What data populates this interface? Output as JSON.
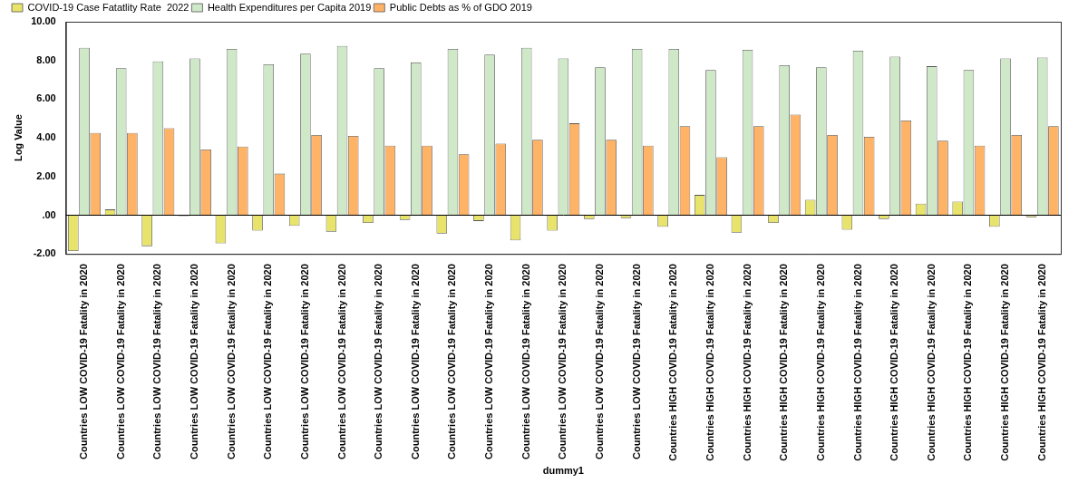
{
  "chart_data": {
    "type": "bar",
    "x_label": "dummy1",
    "y_label": "Log Value",
    "categories": [
      "Countries LOW COVID-19 Fatality in 2020",
      "Countries LOW COVID-19 Fatality in 2020",
      "Countries LOW COVID-19 Fatality in 2020",
      "Countries LOW COVID-19 Fatality in 2020",
      "Countries LOW COVID-19 Fatality in 2020",
      "Countries LOW COVID-19 Fatality in 2020",
      "Countries LOW COVID-19 Fatality in 2020",
      "Countries LOW COVID-19 Fatality in 2020",
      "Countries LOW COVID-19 Fatality in 2020",
      "Countries LOW COVID-19 Fatality in 2020",
      "Countries LOW COVID-19 Fatality in 2020",
      "Countries LOW COVID-19 Fatality in 2020",
      "Countries LOW COVID-19 Fatality in 2020",
      "Countries LOW COVID-19 Fatality in 2020",
      "Countries LOW COVID-19 Fatality in 2020",
      "Countries LOW COVID-19 Fatality in 2020",
      "Countries HIGH COVID-19 Fatality in 2020",
      "Countries HIGH COVID-19 Fatality in 2020",
      "Countries HIGH COVID-19 Fatality in 2020",
      "Countries HIGH COVID-19 Fatality in 2020",
      "Countries HIGH COVID-19 Fatality in 2020",
      "Countries HIGH COVID-19 Fatality in 2020",
      "Countries HIGH COVID-19 Fatality in 2020",
      "Countries HIGH COVID-19 Fatality in 2020",
      "Countries HIGH COVID-19 Fatality in 2020",
      "Countries HIGH COVID-19 Fatality in 2020",
      "Countries HIGH COVID-19 Fatality in 2020"
    ],
    "series": [
      {
        "name": "COVID-19 Case Fatatlity Rate  2022",
        "color": "#e8e36a",
        "values": [
          -1.85,
          0.3,
          -1.6,
          -0.05,
          -1.45,
          -0.8,
          -0.55,
          -0.85,
          -0.4,
          -0.25,
          -0.95,
          -0.3,
          -1.3,
          -0.8,
          -0.2,
          -0.15,
          -0.6,
          1.05,
          -0.9,
          -0.4,
          0.8,
          -0.75,
          -0.2,
          0.6,
          0.7,
          -0.6,
          -0.1
        ]
      },
      {
        "name": "Health Expenditures per Capita 2019",
        "color": "#cfe8c8",
        "values": [
          8.65,
          7.6,
          7.95,
          8.1,
          8.6,
          7.8,
          8.35,
          8.75,
          7.6,
          7.9,
          8.6,
          8.3,
          8.65,
          8.1,
          7.65,
          8.6,
          8.6,
          7.5,
          8.55,
          7.75,
          7.65,
          8.5,
          8.2,
          7.7,
          7.5,
          8.1,
          8.15
        ]
      },
      {
        "name": "Public Debts as % of GDO 2019",
        "color": "#ffb366",
        "values": [
          4.25,
          4.25,
          4.5,
          3.4,
          3.55,
          2.15,
          4.15,
          4.1,
          3.6,
          3.6,
          3.15,
          3.7,
          3.9,
          4.75,
          3.9,
          3.6,
          4.6,
          3.0,
          4.6,
          5.2,
          4.15,
          4.05,
          4.9,
          3.85,
          3.6,
          4.15,
          4.6
        ]
      }
    ],
    "ylim": [
      -2,
      10
    ],
    "yticks": [
      {
        "value": -2,
        "label": "-2.00"
      },
      {
        "value": 0,
        "label": ".00"
      },
      {
        "value": 2,
        "label": "2.00"
      },
      {
        "value": 4,
        "label": "4.00"
      },
      {
        "value": 6,
        "label": "6.00"
      },
      {
        "value": 8,
        "label": "8.00"
      },
      {
        "value": 10,
        "label": "10.00"
      }
    ],
    "grid": false,
    "legend": "top-left"
  }
}
